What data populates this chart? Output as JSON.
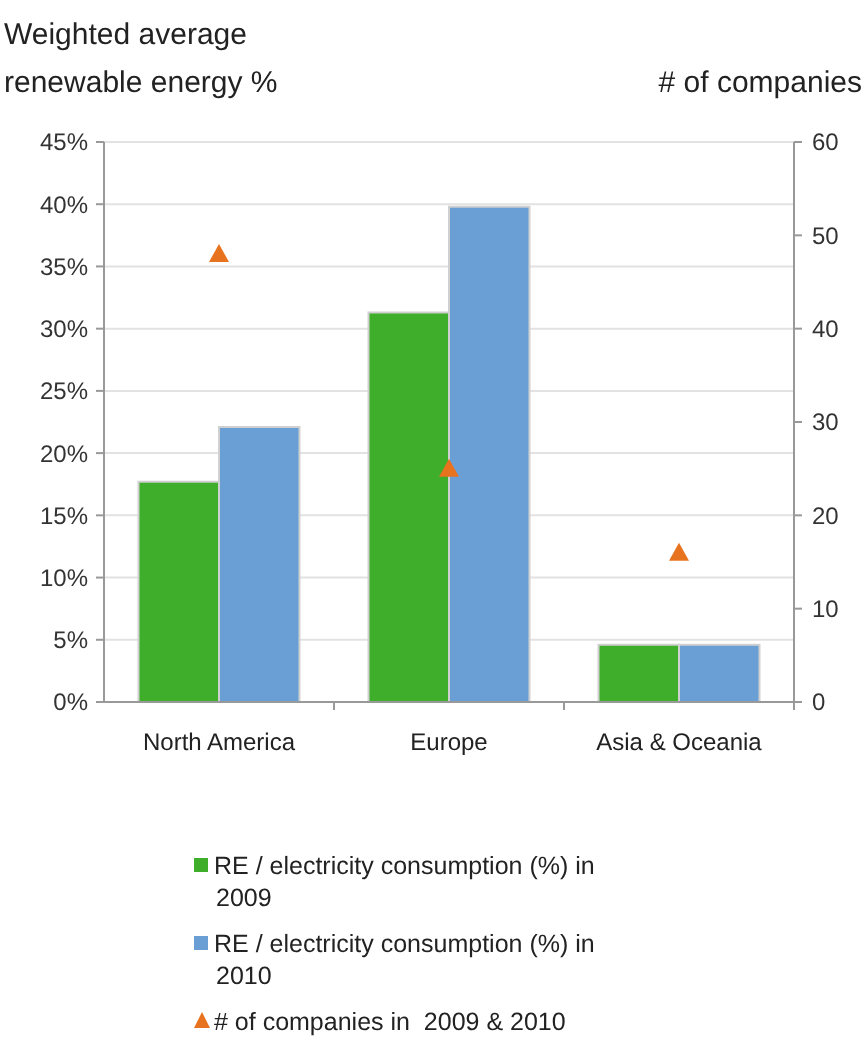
{
  "chart_data": {
    "type": "bar",
    "ylabel": "Weighted average renewable energy %",
    "y2label": "# of companies",
    "categories": [
      "North America",
      "Europe",
      "Asia & Oceania"
    ],
    "series": [
      {
        "name": "RE / electricity consumption (%) in 2009",
        "color": "#3fae2a",
        "values": [
          17.7,
          31.3,
          4.6
        ]
      },
      {
        "name": "RE / electricity consumption (%) in 2010",
        "color": "#6a9fd6",
        "values": [
          22.1,
          39.8,
          4.6
        ]
      },
      {
        "name": "# of companies in  2009 & 2010",
        "type": "scatter",
        "axis": "y2",
        "marker": "triangle",
        "color": "#e8731e",
        "x": [
          "North America",
          "Europe",
          "Asia & Oceania"
        ],
        "values": [
          48,
          25,
          16
        ]
      }
    ],
    "ylim": [
      0,
      45
    ],
    "yticks": [
      {
        "value": 0,
        "label": "0%"
      },
      {
        "value": 5,
        "label": "5%"
      },
      {
        "value": 10,
        "label": "10%"
      },
      {
        "value": 15,
        "label": "15%"
      },
      {
        "value": 20,
        "label": "20%"
      },
      {
        "value": 25,
        "label": "25%"
      },
      {
        "value": 30,
        "label": "30%"
      },
      {
        "value": 35,
        "label": "35%"
      },
      {
        "value": 40,
        "label": "40%"
      },
      {
        "value": 45,
        "label": "45%"
      }
    ],
    "y2lim": [
      0,
      60
    ],
    "y2ticks": [
      0,
      10,
      20,
      30,
      40,
      50,
      60
    ],
    "grid": "y",
    "legend": "bottom"
  }
}
